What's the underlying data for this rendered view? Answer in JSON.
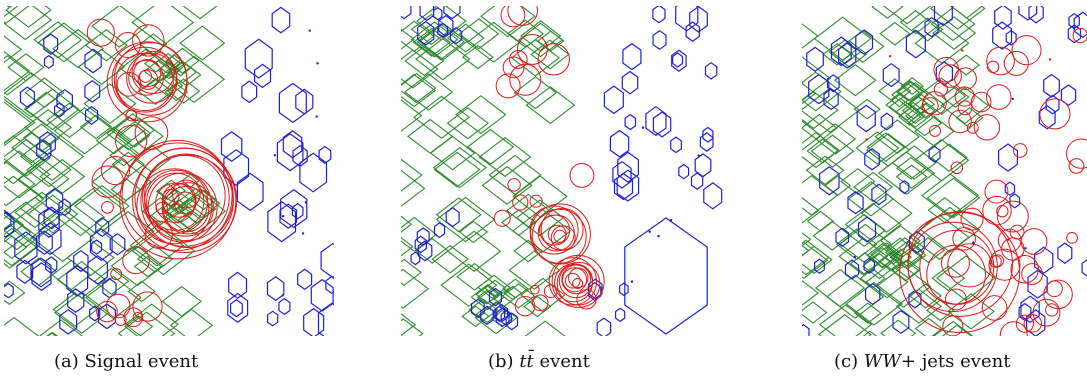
{
  "figure": {
    "panels": [
      {
        "id": "a",
        "caption_label": "(a)",
        "caption_math": "",
        "caption_text": "Signal event"
      },
      {
        "id": "b",
        "caption_label": "(b)",
        "caption_math": "tt̄",
        "caption_text": "event"
      },
      {
        "id": "c",
        "caption_label": "(c)",
        "caption_math": "WW+",
        "caption_text": "jets event"
      }
    ],
    "colors": {
      "diamond": "#2e8b2e",
      "hexagon": "#1f1fd6",
      "circle": "#e01818"
    },
    "shape_types": [
      "diamond",
      "hexagon",
      "circle"
    ]
  }
}
